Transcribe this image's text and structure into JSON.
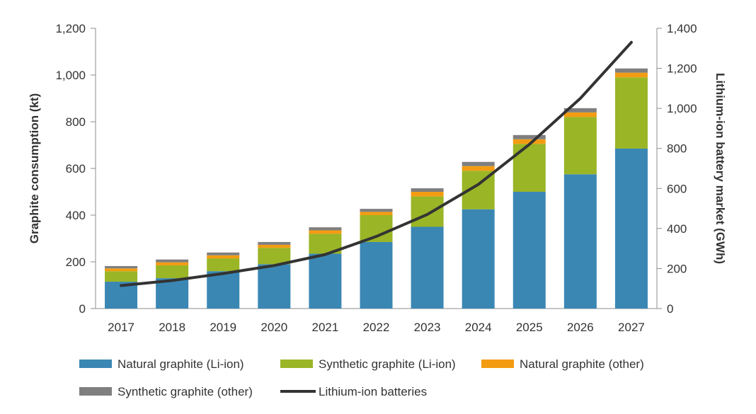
{
  "chart_data": {
    "type": "bar",
    "stacked": true,
    "categories": [
      "2017",
      "2018",
      "2019",
      "2020",
      "2021",
      "2022",
      "2023",
      "2024",
      "2025",
      "2026",
      "2027"
    ],
    "series": [
      {
        "name": "Natural graphite (Li-ion)",
        "axis": "left",
        "color": "#3a87b4",
        "values": [
          115,
          130,
          160,
          190,
          235,
          285,
          350,
          425,
          500,
          575,
          685
        ]
      },
      {
        "name": "Synthetic graphite (Li-ion)",
        "axis": "left",
        "color": "#9ab526",
        "values": [
          45,
          55,
          55,
          70,
          85,
          115,
          130,
          165,
          205,
          245,
          305
        ]
      },
      {
        "name": "Natural graphite (other)",
        "axis": "left",
        "color": "#f39c12",
        "values": [
          12,
          13,
          13,
          13,
          15,
          14,
          20,
          20,
          20,
          20,
          20
        ]
      },
      {
        "name": "Synthetic graphite (other)",
        "axis": "left",
        "color": "#7f7f7f",
        "values": [
          10,
          12,
          12,
          12,
          13,
          13,
          15,
          18,
          18,
          18,
          18
        ]
      },
      {
        "name": "Lithium-ion batteries",
        "type": "line",
        "axis": "right",
        "color": "#333333",
        "values": [
          115,
          140,
          175,
          215,
          270,
          360,
          470,
          620,
          820,
          1050,
          1330
        ]
      }
    ],
    "ylabel": "Graphite consumption (kt)",
    "ylim": [
      0,
      1200
    ],
    "yticks": [
      0,
      200,
      400,
      600,
      800,
      1000,
      1200
    ],
    "yticklabels": [
      "0",
      "200",
      "400",
      "600",
      "800",
      "1,000",
      "1,200"
    ],
    "y2label": "Lithium-ion battery market (GWh)",
    "y2lim": [
      0,
      1400
    ],
    "y2ticks": [
      0,
      200,
      400,
      600,
      800,
      1000,
      1200,
      1400
    ],
    "y2ticklabels": [
      "0",
      "200",
      "400",
      "600",
      "800",
      "1,000",
      "1,200",
      "1,400"
    ],
    "grid": false,
    "legend_position": "bottom"
  }
}
